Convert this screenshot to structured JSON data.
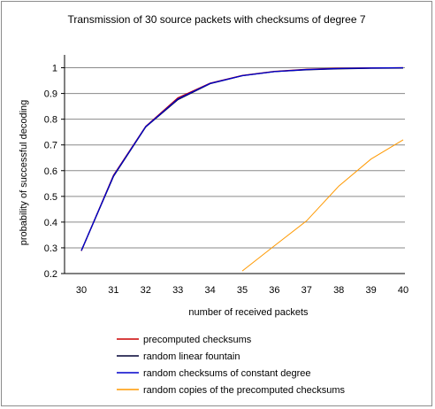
{
  "chart_data": {
    "type": "line",
    "title": "Transmission of 30 source packets with checksums of degree 7",
    "xlabel": "number of received packets",
    "ylabel": "probability of successful decoding",
    "x": [
      30,
      31,
      32,
      33,
      34,
      35,
      36,
      37,
      38,
      39,
      40
    ],
    "xlim": [
      30,
      40
    ],
    "ylim": [
      0.2,
      1.05
    ],
    "yticks": [
      "0.2",
      "0.3",
      "0.4",
      "0.5",
      "0.6",
      "0.7",
      "0.8",
      "0.9",
      "1"
    ],
    "grid": true,
    "legend_position": "bottom",
    "series": [
      {
        "name": "precomputed checksums",
        "color": "#cc0000",
        "values": [
          0.288,
          0.582,
          0.772,
          0.883,
          0.94,
          0.97,
          0.986,
          0.994,
          0.998,
          0.999,
          1.0
        ]
      },
      {
        "name": "random linear fountain",
        "color": "#000033",
        "values": [
          0.289,
          0.578,
          0.77,
          0.876,
          0.938,
          0.969,
          0.985,
          0.992,
          0.996,
          0.998,
          0.999
        ]
      },
      {
        "name": "random checksums of constant degree",
        "color": "#0000cc",
        "values": [
          0.289,
          0.58,
          0.771,
          0.879,
          0.939,
          0.969,
          0.985,
          0.993,
          0.997,
          0.999,
          1.0
        ]
      },
      {
        "name": "random copies of the precomputed checksums",
        "color": "#ff9900",
        "values": [
          null,
          null,
          null,
          null,
          null,
          0.21,
          0.308,
          0.405,
          0.54,
          0.645,
          0.72
        ]
      }
    ]
  }
}
